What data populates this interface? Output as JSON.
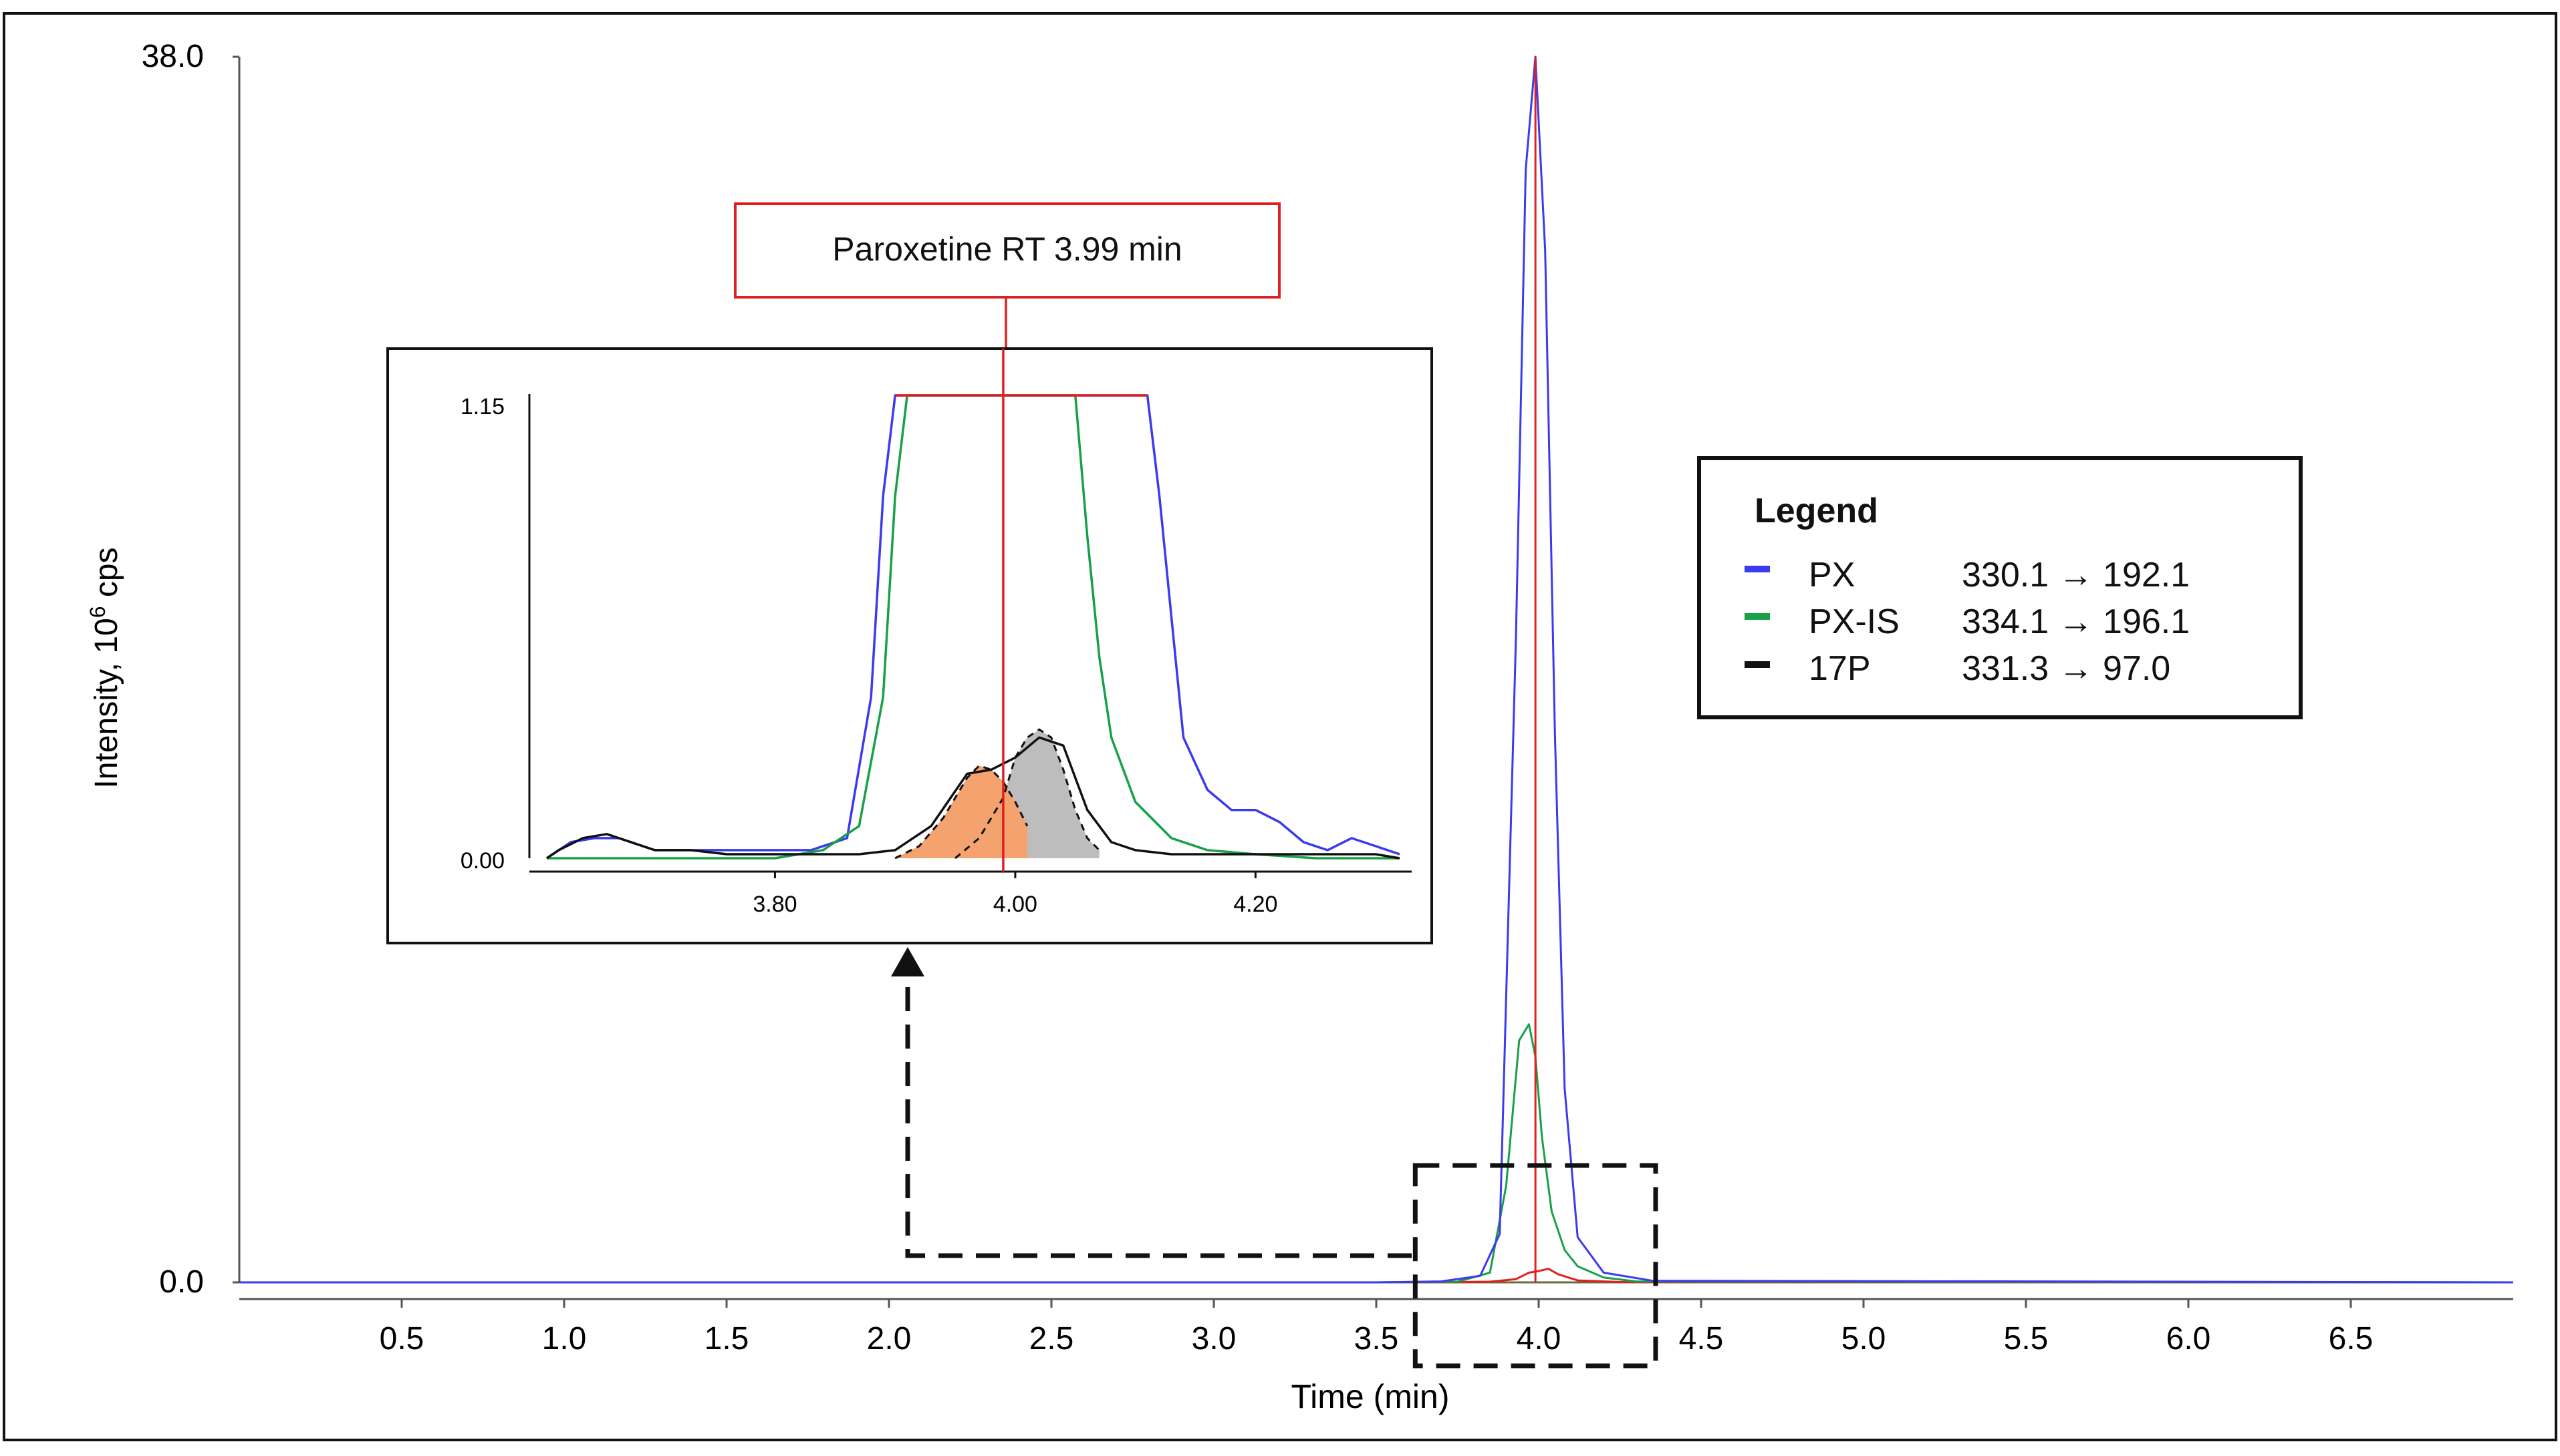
{
  "colors": {
    "px": "#3a3af0",
    "px_is": "#18a048",
    "p17": "#111111",
    "rt_line": "#e02020",
    "fill_orange": "#f4a26e",
    "fill_gray": "#bdbdbd"
  },
  "chart_data": [
    {
      "id": "main",
      "type": "line",
      "title": "",
      "xlabel": "Time (min)",
      "ylabel_main": "Intensity, 10",
      "ylabel_sup": "6",
      "ylabel_tail": " cps",
      "xlim": [
        0.0,
        7.0
      ],
      "ylim": [
        0.0,
        38.0
      ],
      "x_ticks": [
        0.5,
        1.0,
        1.5,
        2.0,
        2.5,
        3.0,
        3.5,
        4.0,
        4.5,
        5.0,
        5.5,
        6.0,
        6.5
      ],
      "x_tick_labels": [
        "0.5",
        "1.0",
        "1.5",
        "2.0",
        "2.5",
        "3.0",
        "3.5",
        "4.0",
        "4.5",
        "5.0",
        "5.5",
        "6.0",
        "6.5"
      ],
      "y_tick_labels": [
        "0.0",
        "38.0"
      ],
      "y_ticks": [
        0.0,
        38.0
      ],
      "series": [
        {
          "name": "PX",
          "x": [
            0.0,
            3.5,
            3.7,
            3.82,
            3.88,
            3.93,
            3.96,
            3.99,
            4.02,
            4.05,
            4.08,
            4.12,
            4.2,
            4.35,
            7.0
          ],
          "values": [
            0,
            0,
            0.03,
            0.2,
            1.5,
            20.0,
            34.5,
            38.0,
            32.0,
            17.0,
            6.0,
            1.4,
            0.3,
            0.05,
            0
          ]
        },
        {
          "name": "PX-IS",
          "x": [
            0.0,
            3.5,
            3.75,
            3.85,
            3.9,
            3.94,
            3.97,
            3.99,
            4.01,
            4.04,
            4.08,
            4.12,
            4.2,
            4.3,
            7.0
          ],
          "values": [
            0,
            0,
            0.02,
            0.3,
            3.0,
            7.5,
            8.0,
            7.0,
            4.5,
            2.2,
            1.0,
            0.5,
            0.15,
            0.03,
            0
          ]
        },
        {
          "name": "17P",
          "x": [
            0.0,
            3.6,
            3.85,
            3.93,
            3.97,
            4.0,
            4.03,
            4.06,
            4.12,
            4.25,
            7.0
          ],
          "values": [
            0,
            0,
            0.02,
            0.1,
            0.3,
            0.35,
            0.42,
            0.25,
            0.06,
            0.01,
            0
          ]
        }
      ],
      "annotations": {
        "rt_label": "Paroxetine RT 3.99 min",
        "rt_value": 3.99,
        "zoom_box_x": [
          3.62,
          4.36
        ]
      }
    },
    {
      "id": "inset",
      "type": "line",
      "xlim": [
        3.6,
        4.33
      ],
      "ylim": [
        0.0,
        1.15
      ],
      "x_ticks": [
        3.8,
        4.0,
        4.2
      ],
      "x_tick_labels": [
        "3.80",
        "4.00",
        "4.20"
      ],
      "y_ticks": [
        0.0,
        1.15
      ],
      "y_tick_labels": [
        "0.00",
        "1.15"
      ],
      "clipped_at": 1.15,
      "series": [
        {
          "name": "PX",
          "x": [
            3.61,
            3.63,
            3.65,
            3.67,
            3.7,
            3.73,
            3.76,
            3.8,
            3.83,
            3.86,
            3.88,
            3.89,
            3.9,
            3.91,
            4.11,
            4.12,
            4.13,
            4.14,
            4.16,
            4.18,
            4.2,
            4.22,
            4.24,
            4.26,
            4.28,
            4.3,
            4.32
          ],
          "values": [
            0.0,
            0.04,
            0.05,
            0.05,
            0.02,
            0.02,
            0.02,
            0.02,
            0.02,
            0.05,
            0.4,
            0.9,
            1.15,
            1.15,
            1.15,
            0.9,
            0.6,
            0.3,
            0.17,
            0.12,
            0.12,
            0.09,
            0.04,
            0.02,
            0.05,
            0.03,
            0.01
          ]
        },
        {
          "name": "PX-IS",
          "x": [
            3.61,
            3.7,
            3.8,
            3.84,
            3.87,
            3.89,
            3.9,
            3.91,
            3.92,
            4.05,
            4.06,
            4.07,
            4.08,
            4.1,
            4.13,
            4.16,
            4.2,
            4.25,
            4.32
          ],
          "values": [
            0.0,
            0.0,
            0.0,
            0.02,
            0.08,
            0.4,
            0.9,
            1.15,
            1.15,
            1.15,
            0.8,
            0.5,
            0.3,
            0.14,
            0.05,
            0.02,
            0.01,
            0.0,
            0.0
          ]
        },
        {
          "name": "17P",
          "x": [
            3.61,
            3.62,
            3.64,
            3.66,
            3.68,
            3.7,
            3.73,
            3.76,
            3.8,
            3.84,
            3.87,
            3.9,
            3.93,
            3.96,
            3.98,
            4.0,
            4.02,
            4.04,
            4.06,
            4.08,
            4.1,
            4.13,
            4.17,
            4.2,
            4.25,
            4.3,
            4.32
          ],
          "values": [
            0.0,
            0.02,
            0.05,
            0.06,
            0.04,
            0.02,
            0.02,
            0.01,
            0.01,
            0.01,
            0.01,
            0.02,
            0.08,
            0.21,
            0.22,
            0.25,
            0.3,
            0.28,
            0.12,
            0.04,
            0.02,
            0.01,
            0.01,
            0.01,
            0.01,
            0.01,
            0.0
          ]
        },
        {
          "name": "17P-orange-peak",
          "x": [
            3.9,
            3.92,
            3.94,
            3.96,
            3.97,
            3.98,
            3.99,
            4.0,
            4.01
          ],
          "values": [
            0.0,
            0.03,
            0.1,
            0.2,
            0.23,
            0.22,
            0.19,
            0.14,
            0.08
          ]
        },
        {
          "name": "17P-gray-peak",
          "x": [
            3.95,
            3.97,
            3.99,
            4.0,
            4.01,
            4.02,
            4.03,
            4.04,
            4.05,
            4.06,
            4.07
          ],
          "values": [
            0.0,
            0.05,
            0.15,
            0.25,
            0.3,
            0.32,
            0.3,
            0.22,
            0.12,
            0.05,
            0.02
          ]
        }
      ]
    }
  ],
  "legend": {
    "title": "Legend",
    "items": [
      {
        "name": "PX",
        "transition": "330.1 → 192.1"
      },
      {
        "name": "PX-IS",
        "transition": "334.1 → 196.1"
      },
      {
        "name": "17P",
        "transition": "331.3 → 97.0"
      }
    ]
  }
}
